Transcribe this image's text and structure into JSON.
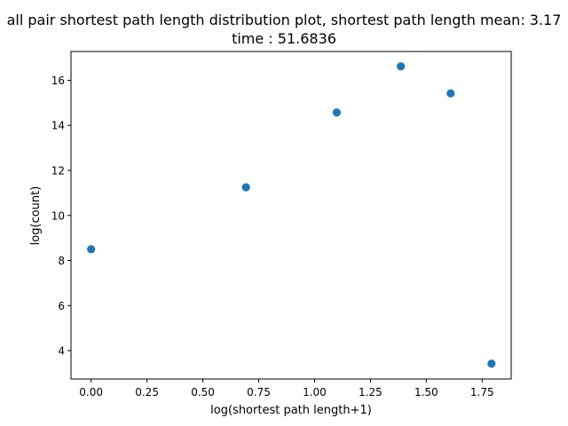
{
  "chart_data": {
    "type": "scatter",
    "title_line1": "all pair shortest path length distribution plot, shortest path length mean: 3.17",
    "title_line2": "time : 51.6836",
    "xlabel": "log(shortest path length+1)",
    "ylabel": "log(count)",
    "xlim": [
      -0.09,
      1.88
    ],
    "ylim": [
      2.74,
      17.28
    ],
    "xticks": [
      0.0,
      0.25,
      0.5,
      0.75,
      1.0,
      1.25,
      1.5,
      1.75
    ],
    "xtick_labels": [
      "0.00",
      "0.25",
      "0.50",
      "0.75",
      "1.00",
      "1.25",
      "1.50",
      "1.75"
    ],
    "yticks": [
      4,
      6,
      8,
      10,
      12,
      14,
      16
    ],
    "ytick_labels": [
      "4",
      "6",
      "8",
      "10",
      "12",
      "14",
      "16"
    ],
    "grid": false,
    "series": [
      {
        "color": "#1f77b4",
        "points": [
          {
            "x": 0.0,
            "y": 8.5
          },
          {
            "x": 0.693,
            "y": 11.25
          },
          {
            "x": 1.099,
            "y": 14.57
          },
          {
            "x": 1.386,
            "y": 16.62
          },
          {
            "x": 1.609,
            "y": 15.42
          },
          {
            "x": 1.792,
            "y": 3.42
          }
        ]
      }
    ]
  }
}
